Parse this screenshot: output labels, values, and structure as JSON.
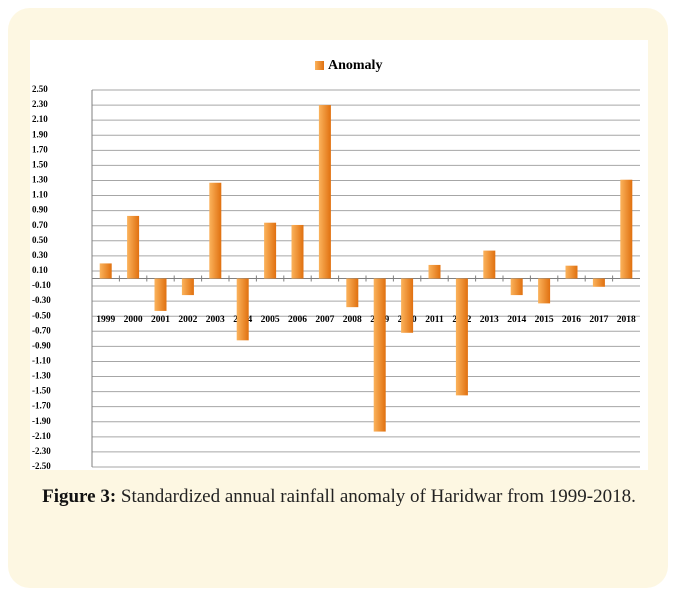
{
  "chart_data": {
    "type": "bar",
    "legend": "Anomaly",
    "categories": [
      "1999",
      "2000",
      "2001",
      "2002",
      "2003",
      "2004",
      "2005",
      "2006",
      "2007",
      "2008",
      "2009",
      "2010",
      "2011",
      "2012",
      "2013",
      "2014",
      "2015",
      "2016",
      "2017",
      "2018"
    ],
    "values": [
      0.2,
      0.83,
      -0.43,
      -0.22,
      1.27,
      -0.82,
      0.74,
      0.71,
      2.3,
      -0.38,
      -2.03,
      -0.72,
      0.18,
      -1.55,
      0.37,
      -0.22,
      -0.33,
      0.17,
      -0.11,
      1.31
    ],
    "color": "#f28c28",
    "ylim": [
      -2.5,
      2.5
    ],
    "yticks": [
      {
        "value": -2.5,
        "label": "-2.50"
      },
      {
        "value": -2.3,
        "label": "-2.30"
      },
      {
        "value": -2.1,
        "label": "-2.10"
      },
      {
        "value": -1.9,
        "label": "-1.90"
      },
      {
        "value": -1.7,
        "label": "-1.70"
      },
      {
        "value": -1.5,
        "label": "-1.50"
      },
      {
        "value": -1.3,
        "label": "-1.30"
      },
      {
        "value": -1.1,
        "label": "-1.10"
      },
      {
        "value": -0.9,
        "label": "-0.90"
      },
      {
        "value": -0.7,
        "label": "-0.70"
      },
      {
        "value": -0.5,
        "label": "-0.50"
      },
      {
        "value": -0.3,
        "label": "-0.30"
      },
      {
        "value": -0.1,
        "label": "-0.10"
      },
      {
        "value": 0.1,
        "label": "0.10"
      },
      {
        "value": 0.3,
        "label": "0.30"
      },
      {
        "value": 0.5,
        "label": "0.50"
      },
      {
        "value": 0.7,
        "label": "0.70"
      },
      {
        "value": 0.9,
        "label": "0.90"
      },
      {
        "value": 1.1,
        "label": "1.10"
      },
      {
        "value": 1.3,
        "label": "1.30"
      },
      {
        "value": 1.5,
        "label": "1.50"
      },
      {
        "value": 1.7,
        "label": "1.70"
      },
      {
        "value": 1.9,
        "label": "1.90"
      },
      {
        "value": 2.1,
        "label": "2.10"
      },
      {
        "value": 2.3,
        "label": "2.30"
      },
      {
        "value": 2.5,
        "label": "2.50"
      }
    ],
    "grid": true
  },
  "caption": {
    "label": "Figure 3:",
    "text": "Standardized annual rainfall anomaly of Haridwar from 1999-2018."
  }
}
